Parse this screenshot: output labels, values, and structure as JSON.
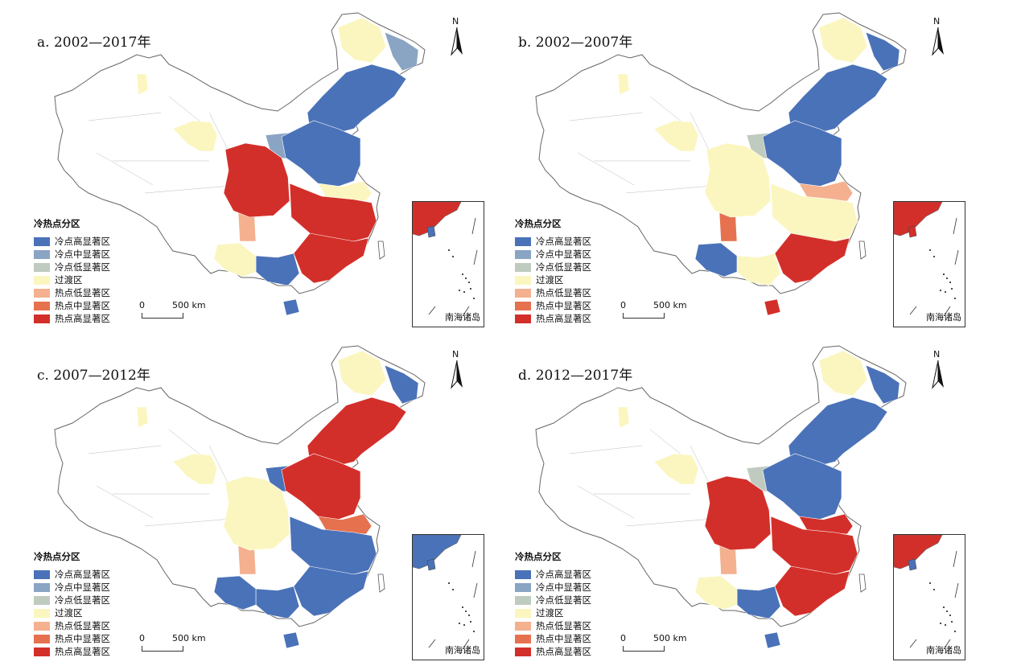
{
  "colors": {
    "cold_high": "#4a72b8",
    "cold_mid": "#8aa4c4",
    "cold_low": "#c0cbbf",
    "transition": "#fbf6bf",
    "hot_low": "#f4b08f",
    "hot_mid": "#e6714f",
    "hot_high": "#d32f2a",
    "nodata": "#ffffff",
    "border": "#aaaaaa"
  },
  "legend": {
    "title": "冷热点分区",
    "items": [
      {
        "key": "cold_high",
        "label": "冷点高显著区"
      },
      {
        "key": "cold_mid",
        "label": "冷点中显著区"
      },
      {
        "key": "cold_low",
        "label": "冷点低显著区"
      },
      {
        "key": "transition",
        "label": "过渡区"
      },
      {
        "key": "hot_low",
        "label": "热点低显著区"
      },
      {
        "key": "hot_mid",
        "label": "热点中显著区"
      },
      {
        "key": "hot_high",
        "label": "热点高显著区"
      }
    ]
  },
  "scale_bar": {
    "zero": "0",
    "end": "500 km"
  },
  "north_label": "N",
  "inset_label": "南海诸岛",
  "panels": [
    {
      "title": "a. 2002—2017年",
      "regions": {
        "northeast": "cold_high",
        "heilongjiang_north": "transition",
        "northeast_east": "cold_mid",
        "north_china": "cold_high",
        "inner_mongolia_mid": "cold_mid",
        "shandong_coast": "transition",
        "central_east": "hot_high",
        "sichuan": "hot_high",
        "southeast": "hot_high",
        "guangxi": "cold_high",
        "yunnan": "transition",
        "hainan": "cold_high",
        "gansu_qinghai": "transition",
        "xinjiang_spot": "transition",
        "sichuan_west": "hot_low"
      }
    },
    {
      "title": "b. 2002—2007年",
      "regions": {
        "northeast": "cold_high",
        "heilongjiang_north": "transition",
        "northeast_east": "cold_high",
        "north_china": "cold_high",
        "inner_mongolia_mid": "cold_low",
        "shandong_coast": "hot_low",
        "central_east": "transition",
        "sichuan": "transition",
        "southeast": "hot_high",
        "guangxi": "transition",
        "yunnan": "cold_high",
        "hainan": "hot_high",
        "gansu_qinghai": "transition",
        "xinjiang_spot": "transition",
        "sichuan_west": "hot_mid"
      }
    },
    {
      "title": "c. 2007—2012年",
      "regions": {
        "northeast": "hot_high",
        "heilongjiang_north": "transition",
        "northeast_east": "cold_high",
        "north_china": "hot_high",
        "inner_mongolia_mid": "cold_high",
        "shandong_coast": "hot_mid",
        "central_east": "cold_high",
        "sichuan": "transition",
        "southeast": "cold_high",
        "guangxi": "cold_high",
        "yunnan": "cold_high",
        "hainan": "cold_high",
        "gansu_qinghai": "transition",
        "xinjiang_spot": "transition",
        "sichuan_west": "hot_low"
      }
    },
    {
      "title": "d. 2012—2017年",
      "regions": {
        "northeast": "cold_high",
        "heilongjiang_north": "transition",
        "northeast_east": "cold_high",
        "north_china": "cold_high",
        "inner_mongolia_mid": "cold_low",
        "shandong_coast": "hot_high",
        "central_east": "hot_high",
        "sichuan": "hot_high",
        "southeast": "hot_high",
        "guangxi": "cold_high",
        "yunnan": "transition",
        "hainan": "cold_high",
        "gansu_qinghai": "transition",
        "xinjiang_spot": "transition",
        "sichuan_west": "hot_low"
      }
    }
  ]
}
